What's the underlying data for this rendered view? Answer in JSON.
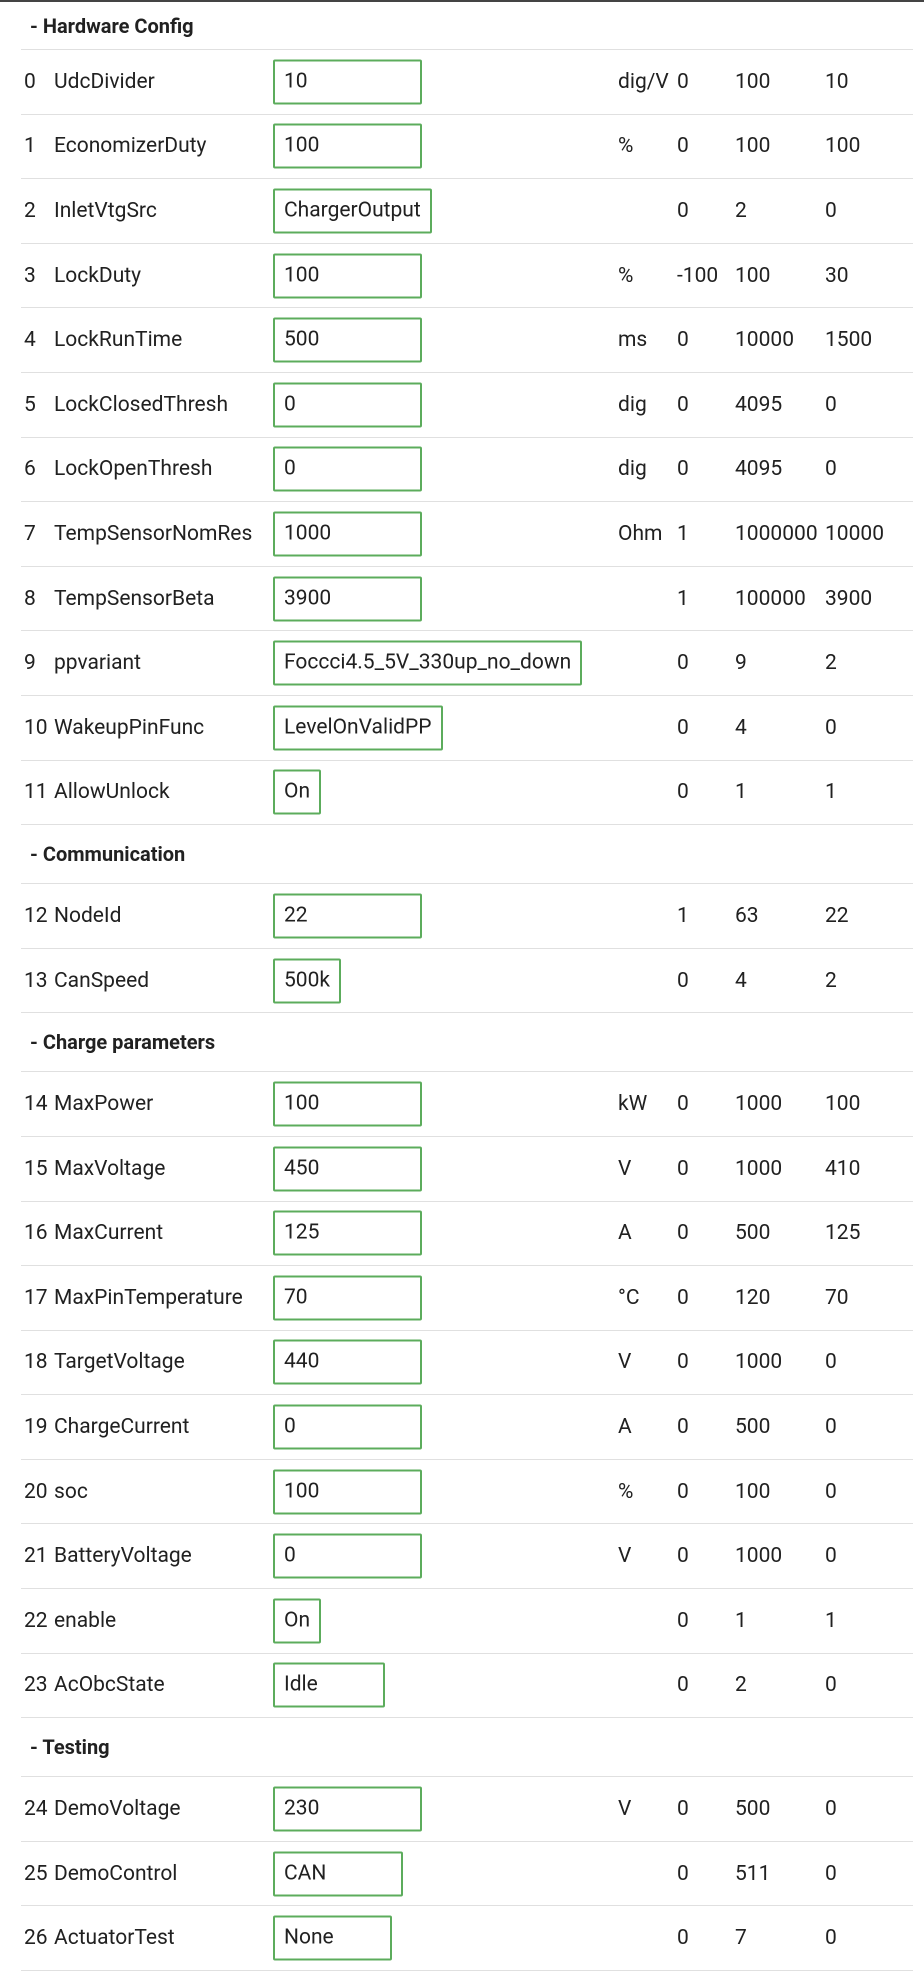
{
  "sections": [
    {
      "title": "- Hardware Config",
      "rows": [
        {
          "index": "0",
          "name": "UdcDivider",
          "value": "10",
          "unit": "dig/V",
          "min": "0",
          "max": "100",
          "default": "10"
        },
        {
          "index": "1",
          "name": "EconomizerDuty",
          "value": "100",
          "unit": "%",
          "min": "0",
          "max": "100",
          "default": "100"
        },
        {
          "index": "2",
          "name": "InletVtgSrc",
          "value": "ChargerOutput",
          "min": "0",
          "max": "2",
          "default": "0"
        },
        {
          "index": "3",
          "name": "LockDuty",
          "value": "100",
          "unit": "%",
          "min": "-100",
          "max": "100",
          "default": "30"
        },
        {
          "index": "4",
          "name": "LockRunTime",
          "value": "500",
          "unit": "ms",
          "min": "0",
          "max": "10000",
          "default": "1500"
        },
        {
          "index": "5",
          "name": "LockClosedThresh",
          "value": "0",
          "unit": "dig",
          "min": "0",
          "max": "4095",
          "default": "0"
        },
        {
          "index": "6",
          "name": "LockOpenThresh",
          "value": "0",
          "unit": "dig",
          "min": "0",
          "max": "4095",
          "default": "0"
        },
        {
          "index": "7",
          "name": "TempSensorNomRes",
          "value": "1000",
          "unit": "Ohm",
          "min": "1",
          "max": "1000000",
          "default": "10000"
        },
        {
          "index": "8",
          "name": "TempSensorBeta",
          "value": "3900",
          "min": "1",
          "max": "100000",
          "default": "3900"
        },
        {
          "index": "9",
          "name": "ppvariant",
          "value": "Foccci4.5_5V_330up_no_down",
          "min": "0",
          "max": "9",
          "default": "2"
        },
        {
          "index": "10",
          "name": "WakeupPinFunc",
          "value": "LevelOnValidPP",
          "min": "0",
          "max": "4",
          "default": "0"
        },
        {
          "index": "11",
          "name": "AllowUnlock",
          "value": "On",
          "min": "0",
          "max": "1",
          "default": "1"
        }
      ]
    },
    {
      "title": "- Communication",
      "rows": [
        {
          "index": "12",
          "name": "NodeId",
          "value": "22",
          "min": "1",
          "max": "63",
          "default": "22"
        },
        {
          "index": "13",
          "name": "CanSpeed",
          "value": "500k",
          "min": "0",
          "max": "4",
          "default": "2"
        }
      ]
    },
    {
      "title": "- Charge parameters",
      "rows": [
        {
          "index": "14",
          "name": "MaxPower",
          "value": "100",
          "unit": "kW",
          "min": "0",
          "max": "1000",
          "default": "100"
        },
        {
          "index": "15",
          "name": "MaxVoltage",
          "value": "450",
          "unit": "V",
          "min": "0",
          "max": "1000",
          "default": "410"
        },
        {
          "index": "16",
          "name": "MaxCurrent",
          "value": "125",
          "unit": "A",
          "min": "0",
          "max": "500",
          "default": "125"
        },
        {
          "index": "17",
          "name": "MaxPinTemperature",
          "value": "70",
          "unit": "°C",
          "min": "0",
          "max": "120",
          "default": "70"
        },
        {
          "index": "18",
          "name": "TargetVoltage",
          "value": "440",
          "unit": "V",
          "min": "0",
          "max": "1000",
          "default": "0"
        },
        {
          "index": "19",
          "name": "ChargeCurrent",
          "value": "0",
          "unit": "A",
          "min": "0",
          "max": "500",
          "default": "0"
        },
        {
          "index": "20",
          "name": "soc",
          "value": "100",
          "unit": "%",
          "min": "0",
          "max": "100",
          "default": "0"
        },
        {
          "index": "21",
          "name": "BatteryVoltage",
          "value": "0",
          "unit": "V",
          "min": "0",
          "max": "1000",
          "default": "0"
        },
        {
          "index": "22",
          "name": "enable",
          "value": "On",
          "min": "0",
          "max": "1",
          "default": "1"
        },
        {
          "index": "23",
          "name": "AcObcState",
          "value": "Idle",
          "min": "0",
          "max": "2",
          "default": "0"
        }
      ]
    },
    {
      "title": "- Testing",
      "rows": [
        {
          "index": "24",
          "name": "DemoVoltage",
          "value": "230",
          "unit": "V",
          "min": "0",
          "max": "500",
          "default": "0"
        },
        {
          "index": "25",
          "name": "DemoControl",
          "value": "CAN",
          "min": "0",
          "max": "511",
          "default": "0"
        },
        {
          "index": "26",
          "name": "ActuatorTest",
          "value": "None",
          "min": "0",
          "max": "7",
          "default": "0"
        }
      ]
    }
  ]
}
